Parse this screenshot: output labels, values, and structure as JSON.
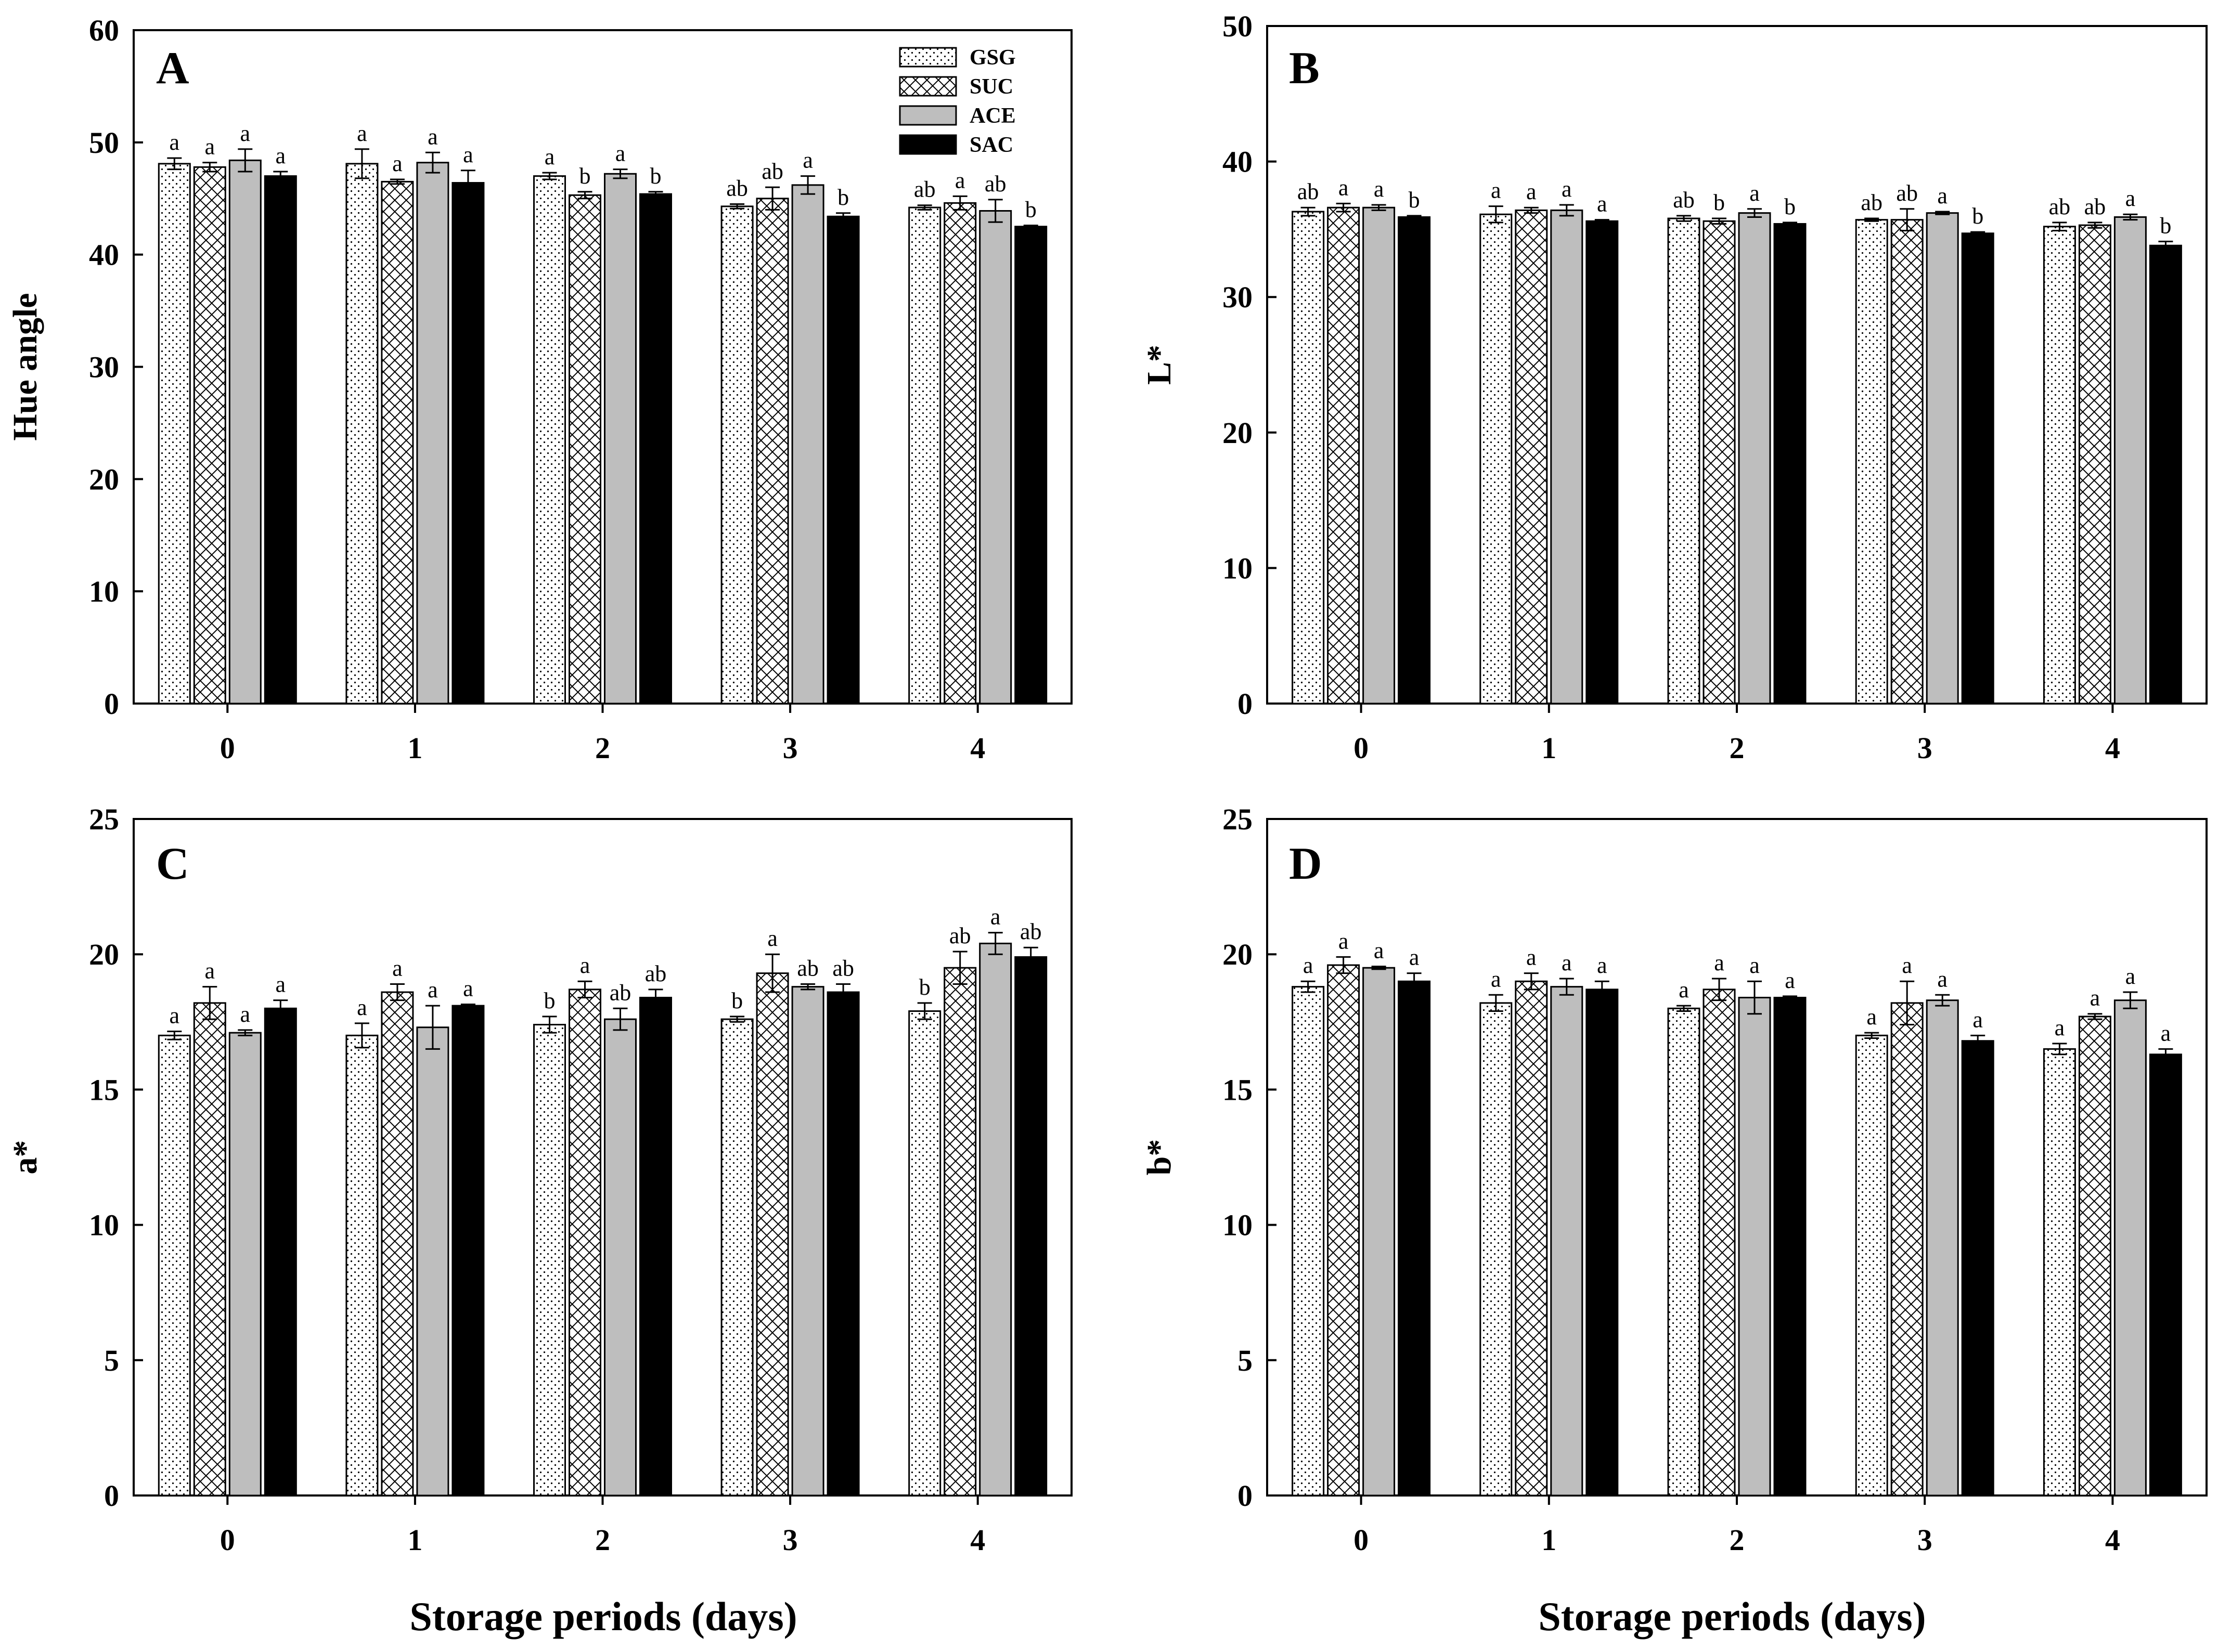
{
  "figure": {
    "xlabel": "Storage periods (days)"
  },
  "legend": {
    "entries": [
      {
        "name": "GSG",
        "pattern": "dots"
      },
      {
        "name": "SUC",
        "pattern": "crosshatch"
      },
      {
        "name": "ACE",
        "pattern": "gray"
      },
      {
        "name": "SAC",
        "pattern": "black"
      }
    ]
  },
  "colors": {
    "gray_fill": "#bebebe",
    "black_fill": "#000000",
    "outline": "#000000"
  },
  "chart_data": [
    {
      "type": "bar",
      "panel": "A",
      "ylabel": "Hue angle",
      "ylim": [
        0,
        60
      ],
      "yticks": [
        0,
        10,
        20,
        30,
        40,
        50,
        60
      ],
      "categories": [
        "0",
        "1",
        "2",
        "3",
        "4"
      ],
      "series": [
        {
          "name": "GSG",
          "values": [
            48.1,
            48.1,
            47.0,
            44.3,
            44.2
          ],
          "errors": [
            0.5,
            1.3,
            0.3,
            0.2,
            0.2
          ],
          "labels": [
            "a",
            "a",
            "a",
            "ab",
            "ab"
          ]
        },
        {
          "name": "SUC",
          "values": [
            47.8,
            46.5,
            45.3,
            45.0,
            44.6
          ],
          "errors": [
            0.4,
            0.2,
            0.3,
            1.0,
            0.6
          ],
          "labels": [
            "a",
            "a",
            "b",
            "ab",
            "a"
          ]
        },
        {
          "name": "ACE",
          "values": [
            48.4,
            48.2,
            47.2,
            46.2,
            43.9
          ],
          "errors": [
            1.0,
            0.9,
            0.4,
            0.8,
            1.0
          ],
          "labels": [
            "a",
            "a",
            "a",
            "a",
            "ab"
          ]
        },
        {
          "name": "SAC",
          "values": [
            47.0,
            46.4,
            45.4,
            43.4,
            42.5
          ],
          "errors": [
            0.4,
            1.1,
            0.2,
            0.3,
            0.1
          ],
          "labels": [
            "a",
            "a",
            "b",
            "b",
            "b"
          ]
        }
      ]
    },
    {
      "type": "bar",
      "panel": "B",
      "ylabel": "L*",
      "ylim": [
        0,
        50
      ],
      "yticks": [
        0,
        10,
        20,
        30,
        40,
        50
      ],
      "categories": [
        "0",
        "1",
        "2",
        "3",
        "4"
      ],
      "series": [
        {
          "name": "GSG",
          "values": [
            36.3,
            36.1,
            35.8,
            35.7,
            35.2
          ],
          "errors": [
            0.3,
            0.6,
            0.2,
            0.1,
            0.3
          ],
          "labels": [
            "ab",
            "a",
            "ab",
            "ab",
            "ab"
          ]
        },
        {
          "name": "SUC",
          "values": [
            36.6,
            36.4,
            35.6,
            35.7,
            35.3
          ],
          "errors": [
            0.3,
            0.2,
            0.2,
            0.8,
            0.2
          ],
          "labels": [
            "a",
            "a",
            "b",
            "ab",
            "ab"
          ]
        },
        {
          "name": "ACE",
          "values": [
            36.6,
            36.4,
            36.2,
            36.2,
            35.9
          ],
          "errors": [
            0.2,
            0.4,
            0.3,
            0.1,
            0.2
          ],
          "labels": [
            "a",
            "a",
            "a",
            "a",
            "a"
          ]
        },
        {
          "name": "SAC",
          "values": [
            35.9,
            35.6,
            35.4,
            34.7,
            33.8
          ],
          "errors": [
            0.1,
            0.1,
            0.1,
            0.1,
            0.3
          ],
          "labels": [
            "b",
            "a",
            "b",
            "b",
            "b"
          ]
        }
      ]
    },
    {
      "type": "bar",
      "panel": "C",
      "ylabel": "a*",
      "ylim": [
        0,
        25
      ],
      "yticks": [
        0,
        5,
        10,
        15,
        20,
        25
      ],
      "categories": [
        "0",
        "1",
        "2",
        "3",
        "4"
      ],
      "series": [
        {
          "name": "GSG",
          "values": [
            17.0,
            17.0,
            17.4,
            17.6,
            17.9
          ],
          "errors": [
            0.15,
            0.45,
            0.3,
            0.1,
            0.3
          ],
          "labels": [
            "a",
            "a",
            "b",
            "b",
            "b"
          ]
        },
        {
          "name": "SUC",
          "values": [
            18.2,
            18.6,
            18.7,
            19.3,
            19.5
          ],
          "errors": [
            0.6,
            0.3,
            0.3,
            0.7,
            0.6
          ],
          "labels": [
            "a",
            "a",
            "a",
            "a",
            "ab"
          ]
        },
        {
          "name": "ACE",
          "values": [
            17.1,
            17.3,
            17.6,
            18.8,
            20.4
          ],
          "errors": [
            0.1,
            0.8,
            0.4,
            0.1,
            0.4
          ],
          "labels": [
            "a",
            "a",
            "ab",
            "ab",
            "a"
          ]
        },
        {
          "name": "SAC",
          "values": [
            18.0,
            18.1,
            18.4,
            18.6,
            19.9
          ],
          "errors": [
            0.3,
            0.05,
            0.3,
            0.3,
            0.35
          ],
          "labels": [
            "a",
            "a",
            "ab",
            "ab",
            "ab"
          ]
        }
      ]
    },
    {
      "type": "bar",
      "panel": "D",
      "ylabel": "b*",
      "ylim": [
        0,
        25
      ],
      "yticks": [
        0,
        5,
        10,
        15,
        20,
        25
      ],
      "categories": [
        "0",
        "1",
        "2",
        "3",
        "4"
      ],
      "series": [
        {
          "name": "GSG",
          "values": [
            18.8,
            18.2,
            18.0,
            17.0,
            16.5
          ],
          "errors": [
            0.2,
            0.3,
            0.1,
            0.1,
            0.2
          ],
          "labels": [
            "a",
            "a",
            "a",
            "a",
            "a"
          ]
        },
        {
          "name": "SUC",
          "values": [
            19.6,
            19.0,
            18.7,
            18.2,
            17.7
          ],
          "errors": [
            0.3,
            0.3,
            0.4,
            0.8,
            0.1
          ],
          "labels": [
            "a",
            "a",
            "a",
            "a",
            "a"
          ]
        },
        {
          "name": "ACE",
          "values": [
            19.5,
            18.8,
            18.4,
            18.3,
            18.3
          ],
          "errors": [
            0.05,
            0.3,
            0.6,
            0.2,
            0.3
          ],
          "labels": [
            "a",
            "a",
            "a",
            "a",
            "a"
          ]
        },
        {
          "name": "SAC",
          "values": [
            19.0,
            18.7,
            18.4,
            16.8,
            16.3
          ],
          "errors": [
            0.3,
            0.3,
            0.05,
            0.2,
            0.2
          ],
          "labels": [
            "a",
            "a",
            "a",
            "a",
            "a"
          ]
        }
      ]
    }
  ]
}
